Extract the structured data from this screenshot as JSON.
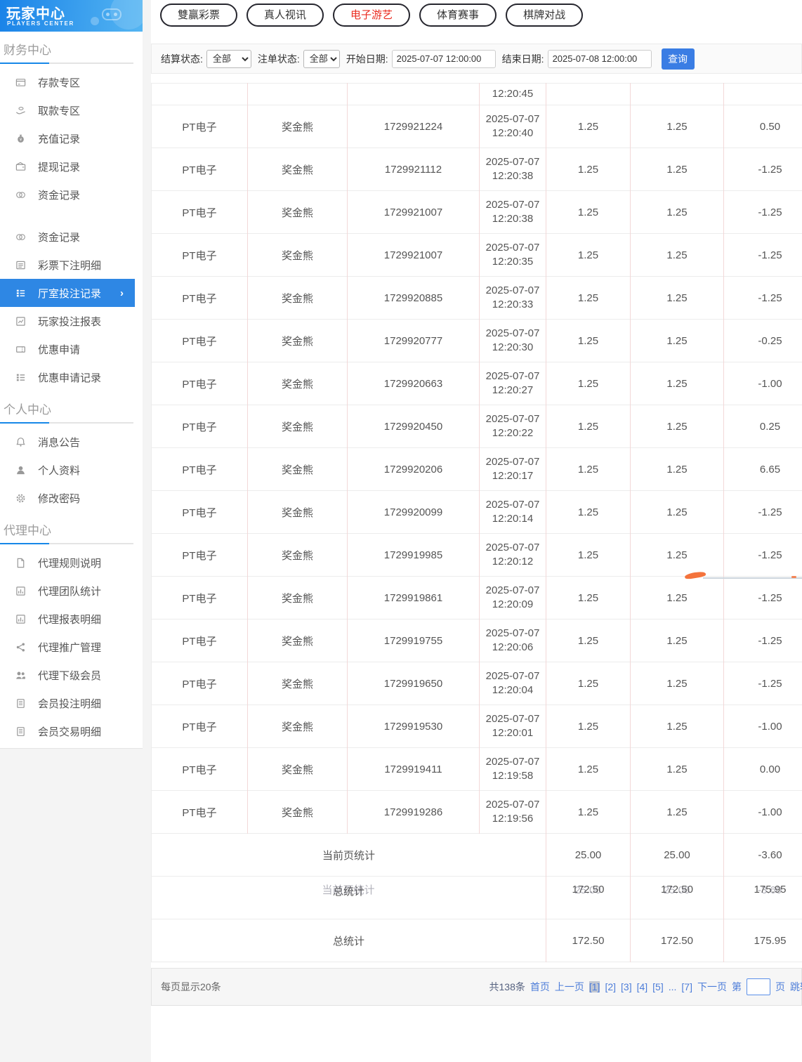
{
  "logo": {
    "title": "玩家中心",
    "subtitle": "PLAYERS CENTER"
  },
  "tabs": [
    {
      "name": "tab-double-win-lottery",
      "label": "雙贏彩票",
      "active": false
    },
    {
      "name": "tab-live-video",
      "label": "真人视讯",
      "active": false
    },
    {
      "name": "tab-electronic-games",
      "label": "电子游艺",
      "active": true
    },
    {
      "name": "tab-sports-events",
      "label": "体育赛事",
      "active": false
    },
    {
      "name": "tab-board-games",
      "label": "棋牌对战",
      "active": false
    }
  ],
  "filters": {
    "settle_status_label": "结算状态:",
    "settle_status_value": "全部",
    "order_status_label": "注单状态:",
    "order_status_value": "全部",
    "start_label": "开始日期:",
    "start_value": "2025-07-07 12:00:00",
    "end_label": "结束日期:",
    "end_value": "2025-07-08 12:00:00",
    "search_button": "查询"
  },
  "sidebar": {
    "sections": [
      {
        "title": "财务中心",
        "items": [
          {
            "name": "deposit-zone",
            "label": "存款专区",
            "icon": "bank-card-icon"
          },
          {
            "name": "withdraw-zone",
            "label": "取款专区",
            "icon": "hand-money-icon"
          },
          {
            "name": "recharge-records",
            "label": "充值记录",
            "icon": "money-bag-icon"
          },
          {
            "name": "withdrawal-records",
            "label": "提现记录",
            "icon": "wallet-icon"
          },
          {
            "name": "funds-records",
            "label": "资金记录",
            "icon": "coins-icon"
          },
          {
            "name": "funds-records-2",
            "label": "资金记录",
            "icon": "coins-icon"
          },
          {
            "name": "lottery-bet-details",
            "label": "彩票下注明细",
            "icon": "list-icon"
          },
          {
            "name": "hall-bet-records",
            "label": "厅室投注记录",
            "icon": "tree-list-icon",
            "active": true,
            "chevron": "›"
          },
          {
            "name": "player-bet-report",
            "label": "玩家投注报表",
            "icon": "report-icon"
          },
          {
            "name": "promo-application",
            "label": "优惠申请",
            "icon": "ticket-icon"
          },
          {
            "name": "promo-application-records",
            "label": "优惠申请记录",
            "icon": "tree-list-icon"
          }
        ]
      },
      {
        "title": "个人中心",
        "items": [
          {
            "name": "announcements",
            "label": "消息公告",
            "icon": "bell-icon"
          },
          {
            "name": "profile",
            "label": "个人资料",
            "icon": "person-icon"
          },
          {
            "name": "change-password",
            "label": "修改密码",
            "icon": "gear-icon"
          }
        ]
      },
      {
        "title": "代理中心",
        "items": [
          {
            "name": "agent-rules",
            "label": "代理规则说明",
            "icon": "file-icon"
          },
          {
            "name": "agent-team-stats",
            "label": "代理团队统计",
            "icon": "bar-chart-icon"
          },
          {
            "name": "agent-report-details",
            "label": "代理报表明细",
            "icon": "bar-chart-icon"
          },
          {
            "name": "agent-promotion",
            "label": "代理推广管理",
            "icon": "share-icon"
          },
          {
            "name": "agent-sub-members",
            "label": "代理下级会员",
            "icon": "people-icon"
          },
          {
            "name": "member-bet-details",
            "label": "会员投注明细",
            "icon": "document-icon"
          },
          {
            "name": "member-transaction-details",
            "label": "会员交易明细",
            "icon": "document-icon"
          }
        ]
      }
    ]
  },
  "table": {
    "partial_row_time": "12:20:45",
    "rows": [
      {
        "platform": "PT电子",
        "game": "奖金熊",
        "order_no": "1729921224",
        "date": "2025-07-07",
        "time": "12:20:40",
        "bet": "1.25",
        "valid_bet": "1.25",
        "win_loss": "0.50"
      },
      {
        "platform": "PT电子",
        "game": "奖金熊",
        "order_no": "1729921112",
        "date": "2025-07-07",
        "time": "12:20:38",
        "bet": "1.25",
        "valid_bet": "1.25",
        "win_loss": "-1.25"
      },
      {
        "platform": "PT电子",
        "game": "奖金熊",
        "order_no": "1729921007",
        "date": "2025-07-07",
        "time": "12:20:38",
        "bet": "1.25",
        "valid_bet": "1.25",
        "win_loss": "-1.25"
      },
      {
        "platform": "PT电子",
        "game": "奖金熊",
        "order_no": "1729921007",
        "date": "2025-07-07",
        "time": "12:20:35",
        "bet": "1.25",
        "valid_bet": "1.25",
        "win_loss": "-1.25"
      },
      {
        "platform": "PT电子",
        "game": "奖金熊",
        "order_no": "1729920885",
        "date": "2025-07-07",
        "time": "12:20:33",
        "bet": "1.25",
        "valid_bet": "1.25",
        "win_loss": "-1.25"
      },
      {
        "platform": "PT电子",
        "game": "奖金熊",
        "order_no": "1729920777",
        "date": "2025-07-07",
        "time": "12:20:30",
        "bet": "1.25",
        "valid_bet": "1.25",
        "win_loss": "-0.25"
      },
      {
        "platform": "PT电子",
        "game": "奖金熊",
        "order_no": "1729920663",
        "date": "2025-07-07",
        "time": "12:20:27",
        "bet": "1.25",
        "valid_bet": "1.25",
        "win_loss": "-1.00"
      },
      {
        "platform": "PT电子",
        "game": "奖金熊",
        "order_no": "1729920450",
        "date": "2025-07-07",
        "time": "12:20:22",
        "bet": "1.25",
        "valid_bet": "1.25",
        "win_loss": "0.25"
      },
      {
        "platform": "PT电子",
        "game": "奖金熊",
        "order_no": "1729920206",
        "date": "2025-07-07",
        "time": "12:20:17",
        "bet": "1.25",
        "valid_bet": "1.25",
        "win_loss": "6.65"
      },
      {
        "platform": "PT电子",
        "game": "奖金熊",
        "order_no": "1729920099",
        "date": "2025-07-07",
        "time": "12:20:14",
        "bet": "1.25",
        "valid_bet": "1.25",
        "win_loss": "-1.25"
      },
      {
        "platform": "PT电子",
        "game": "奖金熊",
        "order_no": "1729919985",
        "date": "2025-07-07",
        "time": "12:20:12",
        "bet": "1.25",
        "valid_bet": "1.25",
        "win_loss": "-1.25"
      },
      {
        "platform": "PT电子",
        "game": "奖金熊",
        "order_no": "1729919861",
        "date": "2025-07-07",
        "time": "12:20:09",
        "bet": "1.25",
        "valid_bet": "1.25",
        "win_loss": "-1.25"
      },
      {
        "platform": "PT电子",
        "game": "奖金熊",
        "order_no": "1729919755",
        "date": "2025-07-07",
        "time": "12:20:06",
        "bet": "1.25",
        "valid_bet": "1.25",
        "win_loss": "-1.25"
      },
      {
        "platform": "PT电子",
        "game": "奖金熊",
        "order_no": "1729919650",
        "date": "2025-07-07",
        "time": "12:20:04",
        "bet": "1.25",
        "valid_bet": "1.25",
        "win_loss": "-1.25"
      },
      {
        "platform": "PT电子",
        "game": "奖金熊",
        "order_no": "1729919530",
        "date": "2025-07-07",
        "time": "12:20:01",
        "bet": "1.25",
        "valid_bet": "1.25",
        "win_loss": "-1.00"
      },
      {
        "platform": "PT电子",
        "game": "奖金熊",
        "order_no": "1729919411",
        "date": "2025-07-07",
        "time": "12:19:58",
        "bet": "1.25",
        "valid_bet": "1.25",
        "win_loss": "0.00"
      },
      {
        "platform": "PT电子",
        "game": "奖金熊",
        "order_no": "1729919286",
        "date": "2025-07-07",
        "time": "12:19:56",
        "bet": "1.25",
        "valid_bet": "1.25",
        "win_loss": "-1.00"
      }
    ],
    "summary": {
      "current": {
        "label": "当前页统计",
        "bet": "25.00",
        "valid_bet": "25.00",
        "win_loss": "-3.60"
      },
      "total": {
        "label": "总统计",
        "bet": "172.50",
        "valid_bet": "172.50",
        "win_loss": "175.95"
      },
      "ghost": {
        "label": "当前页统计",
        "bet": "25.00",
        "valid_bet": "25.00",
        "win_loss": "-3.60"
      },
      "total2": {
        "label": "总统计",
        "bet": "172.50",
        "valid_bet": "172.50",
        "win_loss": "175.95"
      }
    }
  },
  "pagination": {
    "per_page": "每页显示20条",
    "total": "共138条",
    "first": "首页",
    "prev": "上一页",
    "pages": [
      "[1]",
      "[2]",
      "[3]",
      "[4]",
      "[5]"
    ],
    "active": "[1]",
    "ellipsis": "...",
    "last": "[7]",
    "next": "下一页",
    "jump_pre": "第",
    "jump_post": "页",
    "jump_go": "跳转",
    "jump_value": ""
  },
  "colors": {
    "accent_blue": "#2e87e4",
    "link_blue": "#4d7dd9",
    "active_tab_red": "#ea2c20",
    "button_blue": "#3a7de4",
    "logo_gradient_start": "#1a83e8",
    "logo_gradient_end": "#54b5f2",
    "table_vertical_border": "#f2d8d8",
    "annotation_orange": "#f4733c"
  }
}
